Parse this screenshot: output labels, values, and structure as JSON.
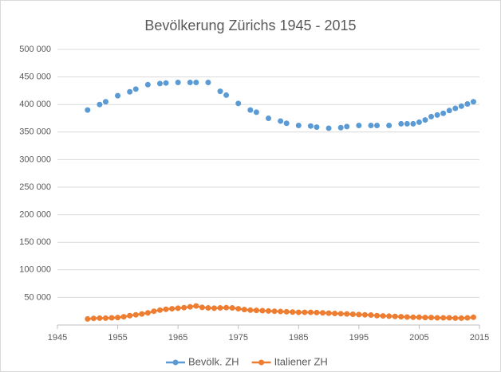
{
  "chart_data": {
    "type": "scatter",
    "title": "Bevölkerung Zürichs 1945 - 2015",
    "xlim": [
      1945,
      2015
    ],
    "xticks": [
      1945,
      1955,
      1965,
      1975,
      1985,
      1995,
      2005,
      2015
    ],
    "ylim": [
      0,
      500000
    ],
    "yticks": [
      {
        "value": 50000,
        "label": "50 000"
      },
      {
        "value": 100000,
        "label": "100 000"
      },
      {
        "value": 150000,
        "label": "150 000"
      },
      {
        "value": 200000,
        "label": "200 000"
      },
      {
        "value": 250000,
        "label": "250 000"
      },
      {
        "value": 300000,
        "label": "300 000"
      },
      {
        "value": 350000,
        "label": "350 000"
      },
      {
        "value": 400000,
        "label": "400 000"
      },
      {
        "value": 450000,
        "label": "450 000"
      },
      {
        "value": 500000,
        "label": "500 000"
      }
    ],
    "grid": true,
    "legend": "bottom",
    "series": [
      {
        "name": "Bevölk. ZH",
        "color": "#5b9bd5",
        "mode": "markers",
        "x": [
          1950,
          1952,
          1953,
          1955,
          1957,
          1958,
          1960,
          1962,
          1963,
          1965,
          1967,
          1968,
          1970,
          1972,
          1973,
          1975,
          1977,
          1978,
          1980,
          1982,
          1983,
          1985,
          1987,
          1988,
          1990,
          1992,
          1993,
          1995,
          1997,
          1998,
          2000,
          2002,
          2003,
          2004,
          2005,
          2006,
          2007,
          2008,
          2009,
          2010,
          2011,
          2012,
          2013,
          2014
        ],
        "values": [
          390000,
          400000,
          405000,
          416000,
          423000,
          428000,
          436000,
          438000,
          439000,
          440000,
          440000,
          440000,
          440000,
          424000,
          417000,
          402000,
          390000,
          386000,
          375000,
          370000,
          366000,
          362000,
          361000,
          359000,
          357000,
          358000,
          360000,
          362000,
          362000,
          362000,
          362000,
          365000,
          365000,
          365000,
          368000,
          372000,
          378000,
          381000,
          384000,
          389000,
          393000,
          397000,
          401000,
          405000
        ]
      },
      {
        "name": "Italiener ZH",
        "color": "#ed7d31",
        "mode": "lines+markers",
        "x": [
          1950,
          1951,
          1952,
          1953,
          1954,
          1955,
          1956,
          1957,
          1958,
          1959,
          1960,
          1961,
          1962,
          1963,
          1964,
          1965,
          1966,
          1967,
          1968,
          1969,
          1970,
          1971,
          1972,
          1973,
          1974,
          1975,
          1976,
          1977,
          1978,
          1979,
          1980,
          1981,
          1982,
          1983,
          1984,
          1985,
          1986,
          1987,
          1988,
          1989,
          1990,
          1991,
          1992,
          1993,
          1994,
          1995,
          1996,
          1997,
          1998,
          1999,
          2000,
          2001,
          2002,
          2003,
          2004,
          2005,
          2006,
          2007,
          2008,
          2009,
          2010,
          2011,
          2012,
          2013,
          2014
        ],
        "values": [
          11000,
          12000,
          12500,
          12500,
          13000,
          13500,
          15000,
          17000,
          18500,
          20000,
          22000,
          25000,
          27000,
          28500,
          29500,
          30500,
          31500,
          33000,
          34500,
          32000,
          31000,
          30500,
          31000,
          31500,
          31000,
          29500,
          28000,
          27000,
          26500,
          26000,
          25500,
          25000,
          24500,
          24000,
          23500,
          23000,
          23000,
          23000,
          22500,
          22000,
          21500,
          21000,
          20500,
          20000,
          19500,
          19000,
          18500,
          18000,
          17000,
          16500,
          16000,
          15500,
          15000,
          14500,
          14000,
          14000,
          13500,
          13500,
          13000,
          13000,
          13000,
          12500,
          12500,
          13000,
          14000
        ]
      }
    ]
  }
}
